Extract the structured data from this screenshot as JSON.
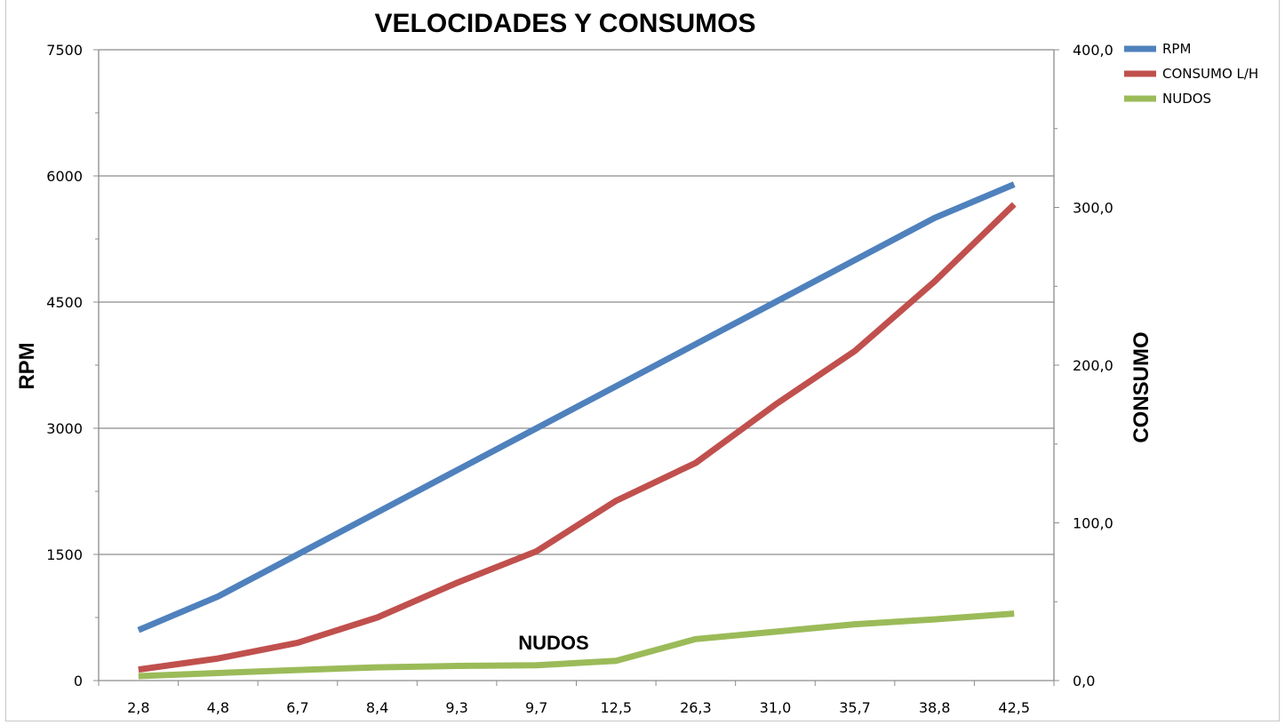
{
  "chart_data": {
    "type": "line",
    "title": "VELOCIDADES Y CONSUMOS",
    "ylabel": "RPM",
    "y2label": "CONSUMO",
    "annotation": "NUDOS",
    "categories": [
      "2,8",
      "4,8",
      "6,7",
      "8,4",
      "9,3",
      "9,7",
      "12,5",
      "26,3",
      "31,0",
      "35,7",
      "38,8",
      "42,5"
    ],
    "yticks": [
      "0",
      "1500",
      "3000",
      "4500",
      "6000",
      "7500"
    ],
    "y2ticks": [
      "0,0",
      "100,0",
      "200,0",
      "300,0",
      "400,0"
    ],
    "ylim": [
      0,
      7500
    ],
    "y2lim": [
      0,
      400
    ],
    "grid": true,
    "legend_position": "top-right",
    "series": [
      {
        "name": "RPM",
        "axis": "left",
        "color": "#4F81BD",
        "values": [
          600,
          1000,
          1500,
          2000,
          2500,
          3000,
          3500,
          4000,
          4500,
          5000,
          5500,
          5900
        ]
      },
      {
        "name": "CONSUMO L/H",
        "axis": "right",
        "color": "#C0504D",
        "values": [
          7,
          14,
          24,
          40,
          62,
          82,
          114,
          138,
          175,
          209,
          253,
          302
        ]
      },
      {
        "name": "NUDOS",
        "axis": "right",
        "color": "#9BBB59",
        "values": [
          2.8,
          4.8,
          6.7,
          8.4,
          9.3,
          9.7,
          12.5,
          26.3,
          31.0,
          35.7,
          38.8,
          42.5
        ]
      }
    ]
  }
}
